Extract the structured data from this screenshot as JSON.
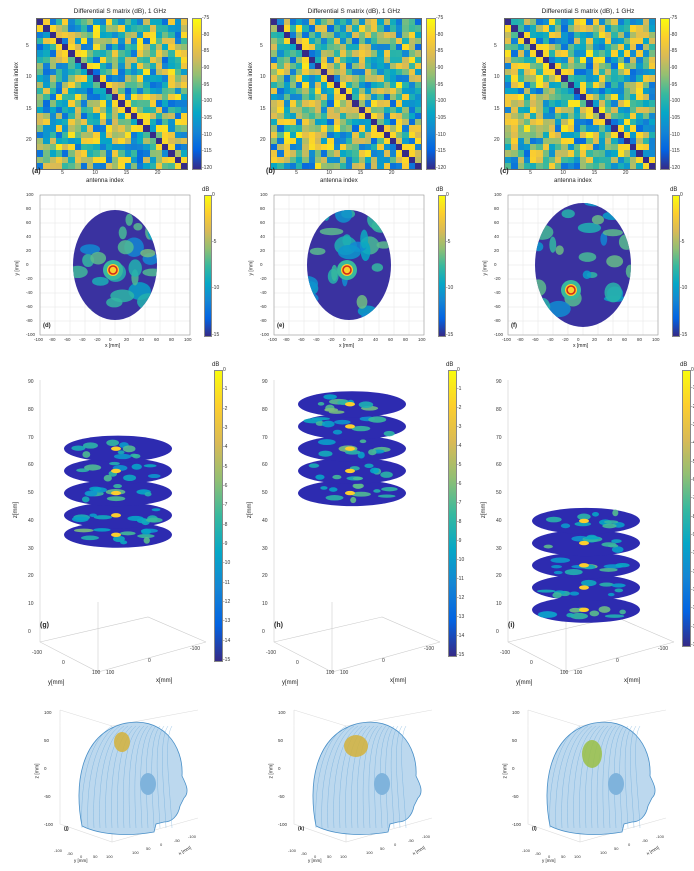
{
  "chart_data": [
    {
      "type": "heatmap",
      "panel": "(a)",
      "title": "Differential S matrix (dB), 1 GHz",
      "xlabel": "antenna index",
      "ylabel": "antenna index",
      "x_ticks": [
        "5",
        "10",
        "15",
        "20"
      ],
      "y_ticks": [
        "5",
        "10",
        "15",
        "20"
      ],
      "colorbar_ticks": [
        "-75",
        "-80",
        "-85",
        "-90",
        "-95",
        "-100",
        "-105",
        "-110",
        "-115",
        "-120"
      ],
      "clim": [
        -120,
        -75
      ],
      "size": 24
    },
    {
      "type": "heatmap",
      "panel": "(b)",
      "title": "Differential S matrix (dB), 1 GHz",
      "xlabel": "antenna index",
      "ylabel": "antenna index",
      "x_ticks": [
        "5",
        "10",
        "15",
        "20"
      ],
      "y_ticks": [
        "5",
        "10",
        "15",
        "20"
      ],
      "colorbar_ticks": [
        "-75",
        "-80",
        "-85",
        "-90",
        "-95",
        "-100",
        "-105",
        "-110",
        "-115",
        "-120"
      ],
      "clim": [
        -120,
        -75
      ],
      "size": 24
    },
    {
      "type": "heatmap",
      "panel": "(c)",
      "title": "Differential S matrix (dB), 1 GHz",
      "xlabel": "antenna index",
      "ylabel": "antenna index",
      "x_ticks": [
        "5",
        "10",
        "15",
        "20"
      ],
      "y_ticks": [
        "5",
        "10",
        "15",
        "20"
      ],
      "colorbar_ticks": [
        "-75",
        "-80",
        "-85",
        "-90",
        "-95",
        "-100",
        "-105",
        "-110",
        "-115",
        "-120"
      ],
      "clim": [
        -120,
        -75
      ],
      "size": 24
    },
    {
      "type": "heatmap",
      "panel": "(d)",
      "xlabel": "x [mm]",
      "ylabel": "y [mm]",
      "x_ticks": [
        "-100",
        "-80",
        "-60",
        "-40",
        "-20",
        "0",
        "20",
        "40",
        "60",
        "80",
        "100"
      ],
      "y_ticks": [
        "100",
        "80",
        "60",
        "40",
        "20",
        "0",
        "-20",
        "-40",
        "-60",
        "-80",
        "-100"
      ],
      "colorbar_title": "dB",
      "colorbar_ticks": [
        "0",
        "-5",
        "-10",
        "-15"
      ],
      "clim": [
        -15,
        0
      ]
    },
    {
      "type": "heatmap",
      "panel": "(e)",
      "xlabel": "x [mm]",
      "ylabel": "y [mm]",
      "x_ticks": [
        "-100",
        "-80",
        "-60",
        "-40",
        "-20",
        "0",
        "20",
        "40",
        "60",
        "80",
        "100"
      ],
      "y_ticks": [
        "100",
        "80",
        "60",
        "40",
        "20",
        "0",
        "-20",
        "-40",
        "-60",
        "-80",
        "-100"
      ],
      "colorbar_title": "dB",
      "colorbar_ticks": [
        "0",
        "-5",
        "-10",
        "-15"
      ],
      "clim": [
        -15,
        0
      ]
    },
    {
      "type": "heatmap",
      "panel": "(f)",
      "xlabel": "x [mm]",
      "ylabel": "y [mm]",
      "x_ticks": [
        "-100",
        "-80",
        "-60",
        "-40",
        "-20",
        "0",
        "20",
        "40",
        "60",
        "80",
        "100"
      ],
      "y_ticks": [
        "100",
        "80",
        "60",
        "40",
        "20",
        "0",
        "-20",
        "-40",
        "-60",
        "-80",
        "-100"
      ],
      "colorbar_title": "dB",
      "colorbar_ticks": [
        "0",
        "-5",
        "-10",
        "-15"
      ],
      "clim": [
        -15,
        0
      ]
    },
    {
      "type": "heatmap",
      "panel": "(g)",
      "xlabel": "x[mm]",
      "ylabel": "y[mm]",
      "zlabel": "z[mm]",
      "z_ticks": [
        "0",
        "10",
        "20",
        "30",
        "40",
        "50",
        "60",
        "70",
        "80",
        "90"
      ],
      "x_ticks": [
        "100",
        "0",
        "-100"
      ],
      "y_ticks": [
        "-100",
        "0",
        "100"
      ],
      "slice_z": [
        35,
        42,
        50,
        58,
        66
      ],
      "colorbar_title": "dB",
      "colorbar_ticks": [
        "0",
        "-1",
        "-2",
        "-3",
        "-4",
        "-5",
        "-6",
        "-7",
        "-8",
        "-9",
        "-10",
        "-11",
        "-12",
        "-13",
        "-14",
        "-15"
      ],
      "clim": [
        -15,
        0
      ]
    },
    {
      "type": "heatmap",
      "panel": "(h)",
      "xlabel": "x[mm]",
      "ylabel": "y[mm]",
      "zlabel": "z[mm]",
      "z_ticks": [
        "0",
        "10",
        "20",
        "30",
        "40",
        "50",
        "60",
        "70",
        "80",
        "90"
      ],
      "x_ticks": [
        "100",
        "0",
        "-100"
      ],
      "y_ticks": [
        "-100",
        "0",
        "100"
      ],
      "slice_z": [
        50,
        58,
        66,
        74,
        82
      ],
      "colorbar_title": "dB",
      "colorbar_ticks": [
        "0",
        "-1",
        "-2",
        "-3",
        "-4",
        "-5",
        "-6",
        "-7",
        "-8",
        "-9",
        "-10",
        "-11",
        "-12",
        "-13",
        "-14",
        "-15"
      ],
      "clim": [
        -15,
        0
      ]
    },
    {
      "type": "heatmap",
      "panel": "(i)",
      "xlabel": "x[mm]",
      "ylabel": "y[mm]",
      "zlabel": "z[mm]",
      "z_ticks": [
        "0",
        "10",
        "20",
        "30",
        "40",
        "50",
        "60",
        "70",
        "80",
        "90"
      ],
      "x_ticks": [
        "100",
        "0",
        "-100"
      ],
      "y_ticks": [
        "-100",
        "0",
        "100"
      ],
      "slice_z": [
        8,
        16,
        24,
        32,
        40
      ],
      "colorbar_title": "dB",
      "colorbar_ticks": [
        "0",
        "-1",
        "-2",
        "-3",
        "-4",
        "-5",
        "-6",
        "-7",
        "-8",
        "-9",
        "-10",
        "-11",
        "-12",
        "-13",
        "-14",
        "-15"
      ],
      "clim": [
        -15,
        0
      ]
    },
    {
      "type": "scatter",
      "panel": "(j)",
      "xlabel": "x [mm]",
      "ylabel": "y [mm]",
      "zlabel": "z [mm]",
      "x_ticks": [
        "-100",
        "-50",
        "0",
        "50",
        "100"
      ],
      "y_ticks": [
        "-100",
        "-50",
        "0",
        "50",
        "100"
      ],
      "z_ticks": [
        "-100",
        "-50",
        "0",
        "50",
        "100"
      ]
    },
    {
      "type": "scatter",
      "panel": "(k)",
      "xlabel": "x [mm]",
      "ylabel": "y [mm]",
      "zlabel": "z [mm]",
      "x_ticks": [
        "-100",
        "-50",
        "0",
        "50",
        "100"
      ],
      "y_ticks": [
        "-100",
        "-50",
        "0",
        "50",
        "100"
      ],
      "z_ticks": [
        "-100",
        "-50",
        "0",
        "50",
        "100"
      ]
    },
    {
      "type": "scatter",
      "panel": "(l)",
      "xlabel": "x [mm]",
      "ylabel": "y [mm]",
      "zlabel": "z [mm]",
      "x_ticks": [
        "-100",
        "-50",
        "0",
        "50",
        "100"
      ],
      "y_ticks": [
        "-100",
        "-50",
        "0",
        "50",
        "100"
      ],
      "z_ticks": [
        "-100",
        "-50",
        "0",
        "50",
        "100"
      ]
    }
  ],
  "colors": {
    "parula_low": "#352a87",
    "parula_mid": "#21b3a4",
    "parula_high": "#f9fb0e",
    "head_mesh": "#4a90c8",
    "target": "#d4b23a"
  }
}
